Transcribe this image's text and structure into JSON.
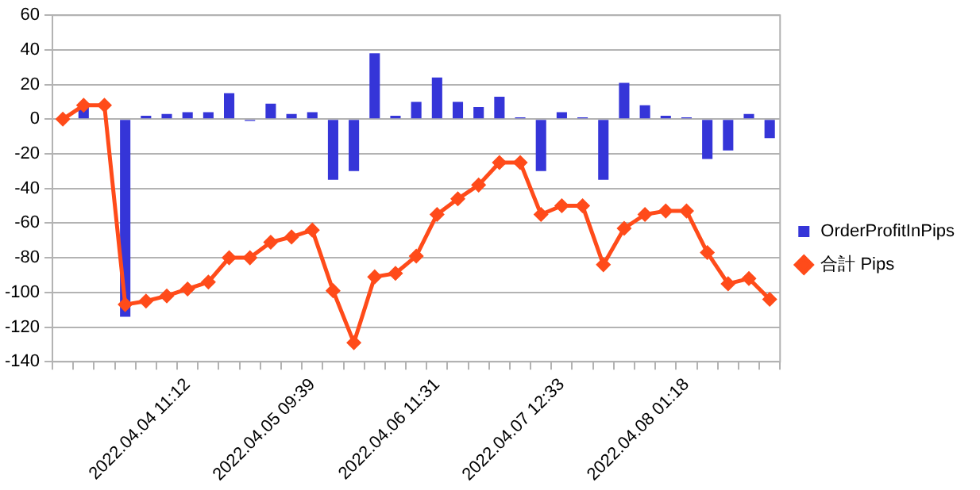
{
  "chart_data": {
    "type": "bar",
    "categories": [
      null,
      null,
      null,
      null,
      null,
      null,
      "2022.04.04 11:12",
      null,
      null,
      null,
      null,
      null,
      "2022.04.05 09:39",
      null,
      null,
      null,
      null,
      null,
      "2022.04.06 11:31",
      null,
      null,
      null,
      null,
      null,
      "2022.04.07 12:33",
      null,
      null,
      null,
      null,
      null,
      "2022.04.08 01:18",
      null,
      null,
      null,
      null
    ],
    "series": [
      {
        "name": "OrderProfitInPips",
        "color": "#3535d8",
        "values": [
          0,
          7,
          0,
          -114,
          2,
          3,
          4,
          4,
          15,
          -1,
          9,
          3,
          4,
          -35,
          -30,
          38,
          2,
          10,
          24,
          10,
          7,
          13,
          1,
          -30,
          4,
          1,
          -35,
          21,
          8,
          2,
          1,
          -23,
          -18,
          3,
          -11
        ]
      },
      {
        "name": "合計 Pips",
        "type": "line",
        "color": "#ff4b1a",
        "marker": "diamond",
        "values": [
          0,
          8,
          8,
          -107,
          -105,
          -102,
          -98,
          -94,
          -80,
          -80,
          -71,
          -68,
          -64,
          -99,
          -129,
          -91,
          -89,
          -79,
          -55,
          -46,
          -38,
          -25,
          -25,
          -55,
          -50,
          -50,
          -84,
          -63,
          -55,
          -53,
          -53,
          -77,
          -95,
          -92,
          -104
        ]
      }
    ],
    "ylim": [
      -140,
      60
    ],
    "yticks": [
      -140,
      -120,
      -100,
      -80,
      -60,
      -40,
      -20,
      0,
      20,
      40,
      60
    ],
    "grid": "y",
    "legend": "right"
  }
}
